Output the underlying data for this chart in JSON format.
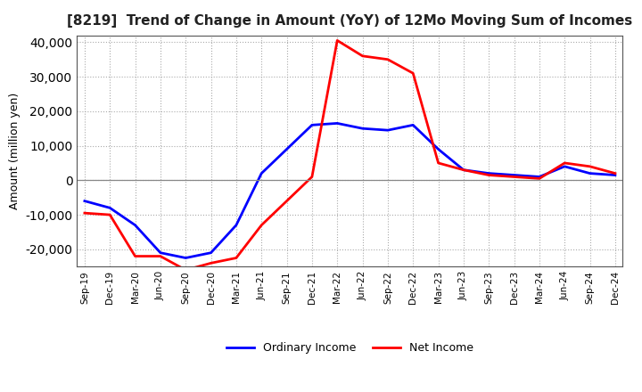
{
  "title": "[8219]  Trend of Change in Amount (YoY) of 12Mo Moving Sum of Incomes",
  "ylabel": "Amount (million yen)",
  "ylim": [
    -25000,
    42000
  ],
  "yticks": [
    -20000,
    -10000,
    0,
    10000,
    20000,
    30000,
    40000
  ],
  "x_labels": [
    "Sep-19",
    "Dec-19",
    "Mar-20",
    "Jun-20",
    "Sep-20",
    "Dec-20",
    "Mar-21",
    "Jun-21",
    "Sep-21",
    "Dec-21",
    "Mar-22",
    "Jun-22",
    "Sep-22",
    "Dec-22",
    "Mar-23",
    "Jun-23",
    "Sep-23",
    "Dec-23",
    "Mar-24",
    "Jun-24",
    "Sep-24",
    "Dec-24"
  ],
  "ordinary_income": [
    -6000,
    -8000,
    -13000,
    -21000,
    -22500,
    -21000,
    -13000,
    2000,
    9000,
    16000,
    16500,
    15000,
    14500,
    16000,
    9000,
    3000,
    2000,
    1500,
    1000,
    4000,
    2000,
    1500
  ],
  "net_income": [
    -9500,
    -10000,
    -22000,
    -22000,
    -26000,
    -24000,
    -22500,
    -13000,
    -6000,
    1000,
    40500,
    36000,
    35000,
    31000,
    5000,
    3000,
    1500,
    1000,
    500,
    5000,
    4000,
    2000
  ],
  "ordinary_color": "#0000ff",
  "net_color": "#ff0000",
  "grid_color": "#aaaaaa",
  "background_color": "#ffffff",
  "legend_labels": [
    "Ordinary Income",
    "Net Income"
  ],
  "title_color": "#222222"
}
